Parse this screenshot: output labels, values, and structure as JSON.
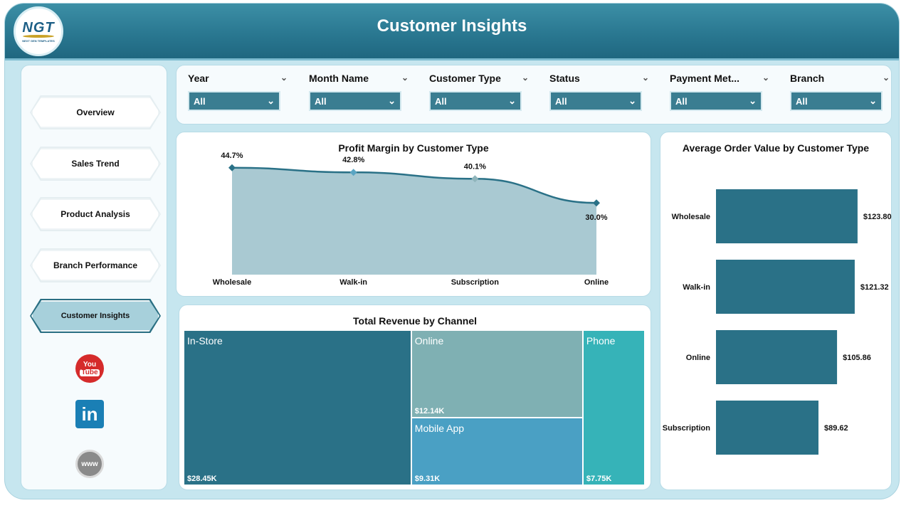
{
  "header": {
    "title": "Customer Insights",
    "logo_text": "NGT",
    "logo_subtext": "NEXT GEN TEMPLATES"
  },
  "sidebar": {
    "items": [
      {
        "label": "Overview"
      },
      {
        "label": "Sales Trend"
      },
      {
        "label": "Product Analysis"
      },
      {
        "label": "Branch Performance"
      },
      {
        "label": "Customer Insights",
        "active": true
      }
    ],
    "social": [
      {
        "icon": "youtube-icon",
        "text_top": "You",
        "text_bottom": "Tube"
      },
      {
        "icon": "linkedin-icon",
        "text": "in"
      },
      {
        "icon": "website-globe-icon",
        "text": "www"
      }
    ]
  },
  "filters": [
    {
      "label": "Year",
      "value": "All"
    },
    {
      "label": "Month Name",
      "value": "All"
    },
    {
      "label": "Customer Type",
      "value": "All"
    },
    {
      "label": "Status",
      "value": "All"
    },
    {
      "label": "Payment Met...",
      "value": "All"
    },
    {
      "label": "Branch",
      "value": "All"
    }
  ],
  "colors": {
    "header": "#2a7891",
    "accent": "#2a7187",
    "area_fill": "#a9c9d2",
    "line": "#2a7187"
  },
  "chart_data": [
    {
      "type": "area",
      "title": "Profit Margin by Customer Type",
      "categories": [
        "Wholesale",
        "Walk-in",
        "Subscription",
        "Online"
      ],
      "values": [
        44.7,
        42.8,
        40.1,
        30.0
      ],
      "labels": [
        "44.7%",
        "42.8%",
        "40.1%",
        "30.0%"
      ],
      "ylim": [
        0,
        50
      ]
    },
    {
      "type": "bar",
      "orientation": "horizontal",
      "title": "Average Order Value by Customer Type",
      "categories": [
        "Wholesale",
        "Walk-in",
        "Online",
        "Subscription"
      ],
      "values": [
        123.8,
        121.32,
        105.86,
        89.62
      ],
      "labels": [
        "$123.80",
        "$121.32",
        "$105.86",
        "$89.62"
      ],
      "xlim": [
        0,
        150
      ]
    },
    {
      "type": "treemap",
      "title": "Total Revenue by Channel",
      "categories": [
        "In-Store",
        "Online",
        "Mobile App",
        "Phone"
      ],
      "values": [
        28.45,
        12.14,
        9.31,
        7.75
      ],
      "labels": [
        "$28.45K",
        "$12.14K",
        "$9.31K",
        "$7.75K"
      ],
      "colors": [
        "#2a7187",
        "#7fb0b3",
        "#4aa0c4",
        "#36b3b8"
      ]
    }
  ]
}
